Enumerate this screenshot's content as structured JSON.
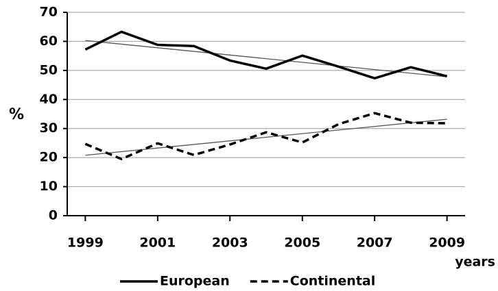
{
  "chart_data": {
    "type": "line",
    "x": [
      1999,
      2000,
      2001,
      2002,
      2003,
      2004,
      2005,
      2006,
      2007,
      2008,
      2009
    ],
    "series": [
      {
        "name": "European",
        "color": "#000000",
        "dash": "solid",
        "values": [
          57.2,
          63.3,
          58.8,
          58.4,
          53.4,
          50.6,
          55.1,
          51.3,
          47.3,
          51.1,
          48.0
        ]
      },
      {
        "name": "Continental",
        "color": "#000000",
        "dash": "dashed",
        "values": [
          24.7,
          19.5,
          24.9,
          20.9,
          24.5,
          28.7,
          25.2,
          31.5,
          35.3,
          32.0,
          31.8
        ]
      }
    ],
    "trend_lines": [
      {
        "color": "#555555",
        "x": [
          1999,
          2009
        ],
        "values": [
          60.3,
          47.8
        ]
      },
      {
        "color": "#555555",
        "x": [
          1999,
          2009
        ],
        "values": [
          20.8,
          33.2
        ]
      }
    ],
    "xlim": [
      1998.5,
      2009.5
    ],
    "xticks": [
      1999,
      2001,
      2003,
      2005,
      2007,
      2009
    ],
    "ylim": [
      0,
      70
    ],
    "yticks": [
      0,
      10,
      20,
      30,
      40,
      50,
      60,
      70
    ],
    "ylabel": "%",
    "xlabel": "years",
    "grid": true,
    "legend": "bottom"
  }
}
